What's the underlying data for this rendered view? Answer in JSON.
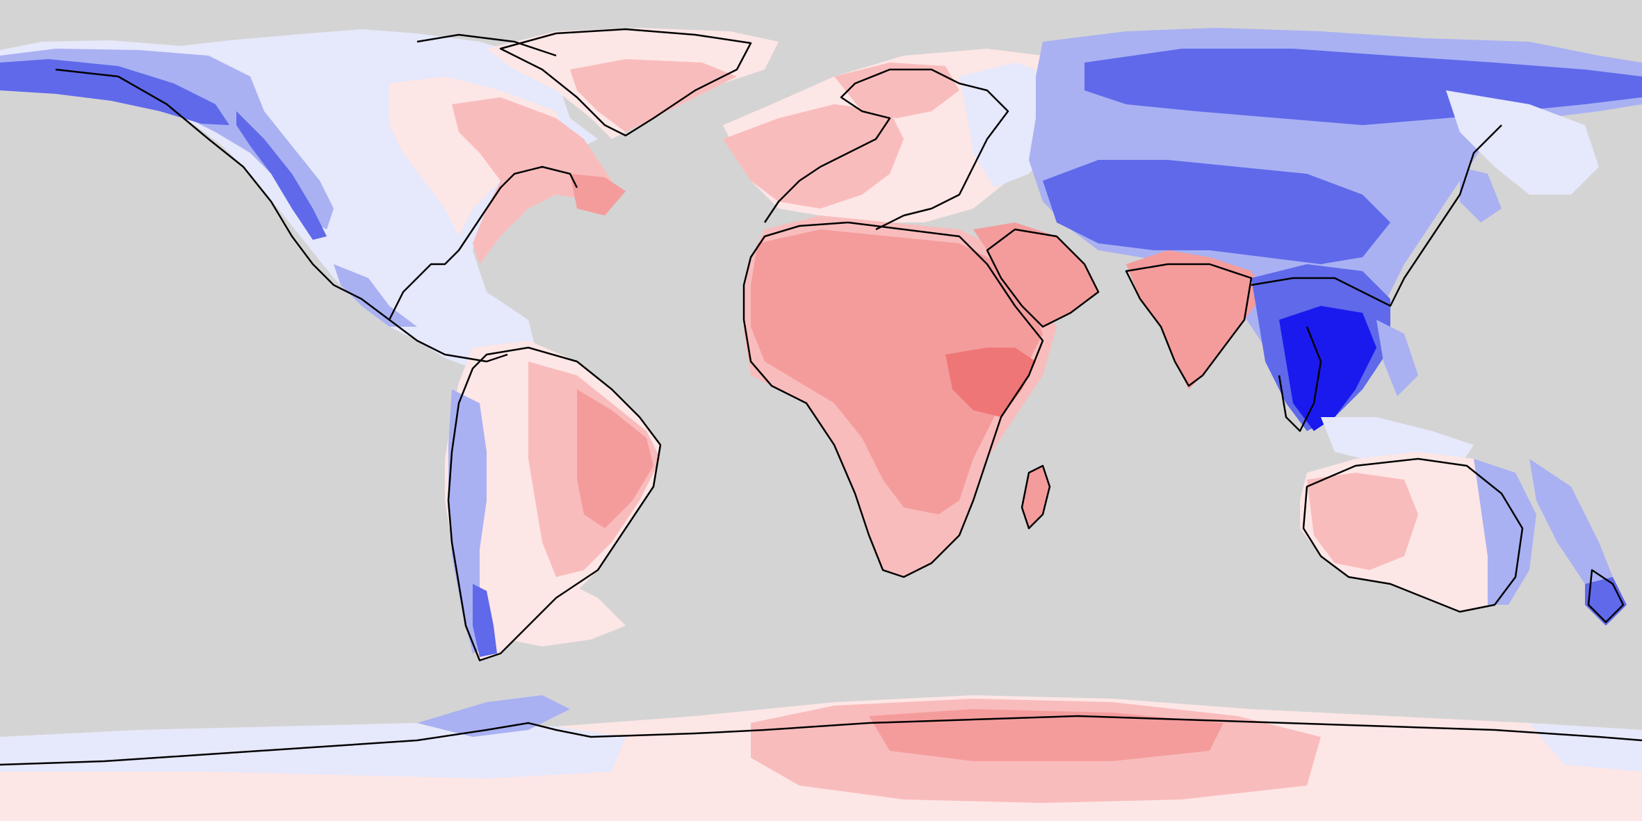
{
  "map": {
    "projection": "equirectangular",
    "background_color": "#d4d4d4",
    "coastline_color": "#000000",
    "legend": "none",
    "color_scale": {
      "negative_strong": "#1a1aee",
      "negative_medium": "#5f69ea",
      "negative_light": "#a9b1f2",
      "negative_faint": "#e6e8fb",
      "positive_faint": "#fde6e6",
      "positive_light": "#f9bcbc",
      "positive_medium": "#f49c9c",
      "positive_strong": "#ef7676"
    },
    "regions": [
      {
        "name": "north-america",
        "tone": "mixed"
      },
      {
        "name": "greenland",
        "tone": "positive_light"
      },
      {
        "name": "south-america",
        "tone": "mixed"
      },
      {
        "name": "europe",
        "tone": "positive_light"
      },
      {
        "name": "africa",
        "tone": "positive_medium"
      },
      {
        "name": "arabia",
        "tone": "positive_medium"
      },
      {
        "name": "india",
        "tone": "positive_medium"
      },
      {
        "name": "asia",
        "tone": "negative_medium"
      },
      {
        "name": "southeast-asia",
        "tone": "negative_strong"
      },
      {
        "name": "australia",
        "tone": "mixed"
      },
      {
        "name": "antarctica",
        "tone": "mixed"
      }
    ]
  }
}
